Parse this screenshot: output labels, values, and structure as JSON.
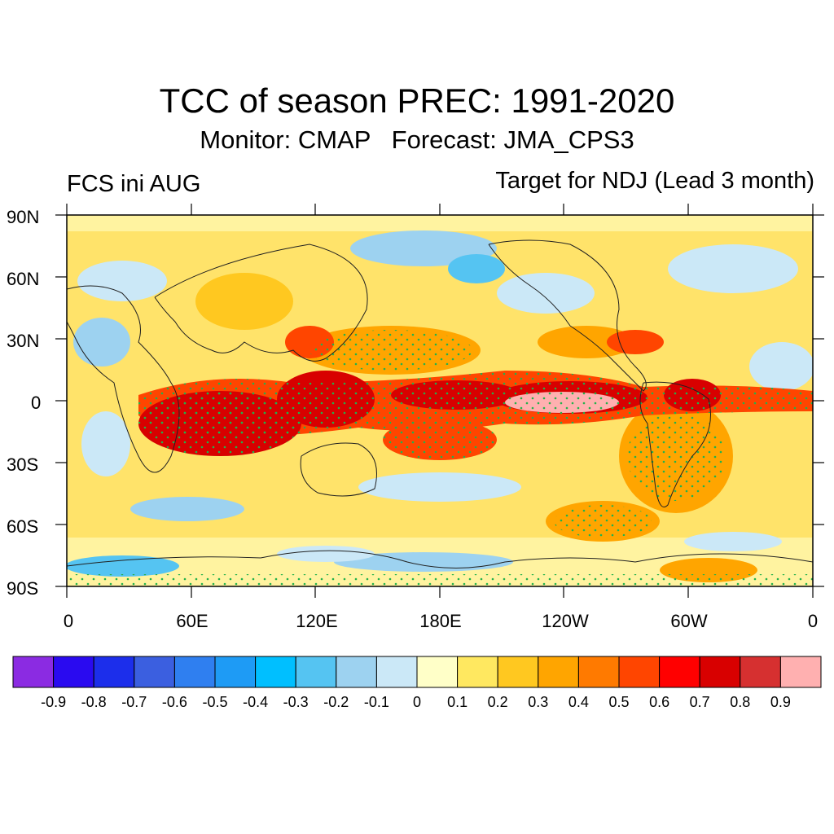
{
  "title": "TCC of season PREC: 1991-2020",
  "subtitle": "Monitor: CMAP   Forecast: JMA_CPS3",
  "left_label": "FCS ini AUG",
  "right_label": "Target for NDJ (Lead 3 month)",
  "lat_labels": [
    "90N",
    "60N",
    "30N",
    "0",
    "30S",
    "60S",
    "90S"
  ],
  "lon_labels": [
    "0",
    "60E",
    "120E",
    "180E",
    "120W",
    "60W",
    "0"
  ],
  "colorbar": {
    "colors": [
      "#8b2be2",
      "#2a0af0",
      "#1c2eeb",
      "#3b5fe0",
      "#2f7ff0",
      "#1e9bf5",
      "#00bfff",
      "#55c4f2",
      "#9dd2f0",
      "#cbe8f7",
      "#ffffc8",
      "#ffe860",
      "#ffc820",
      "#ffa500",
      "#ff7a00",
      "#ff4500",
      "#ff0000",
      "#d80000",
      "#d63030",
      "#ffb0b0"
    ],
    "labels": [
      "-0.9",
      "-0.8",
      "-0.7",
      "-0.6",
      "-0.5",
      "-0.4",
      "-0.3",
      "-0.2",
      "-0.1",
      "0",
      "0.1",
      "0.2",
      "0.3",
      "0.4",
      "0.5",
      "0.6",
      "0.7",
      "0.8",
      "0.9"
    ]
  },
  "map_colors": {
    "background": "#ffe36a",
    "stipple": "#22b14c",
    "coast": "#202020"
  }
}
